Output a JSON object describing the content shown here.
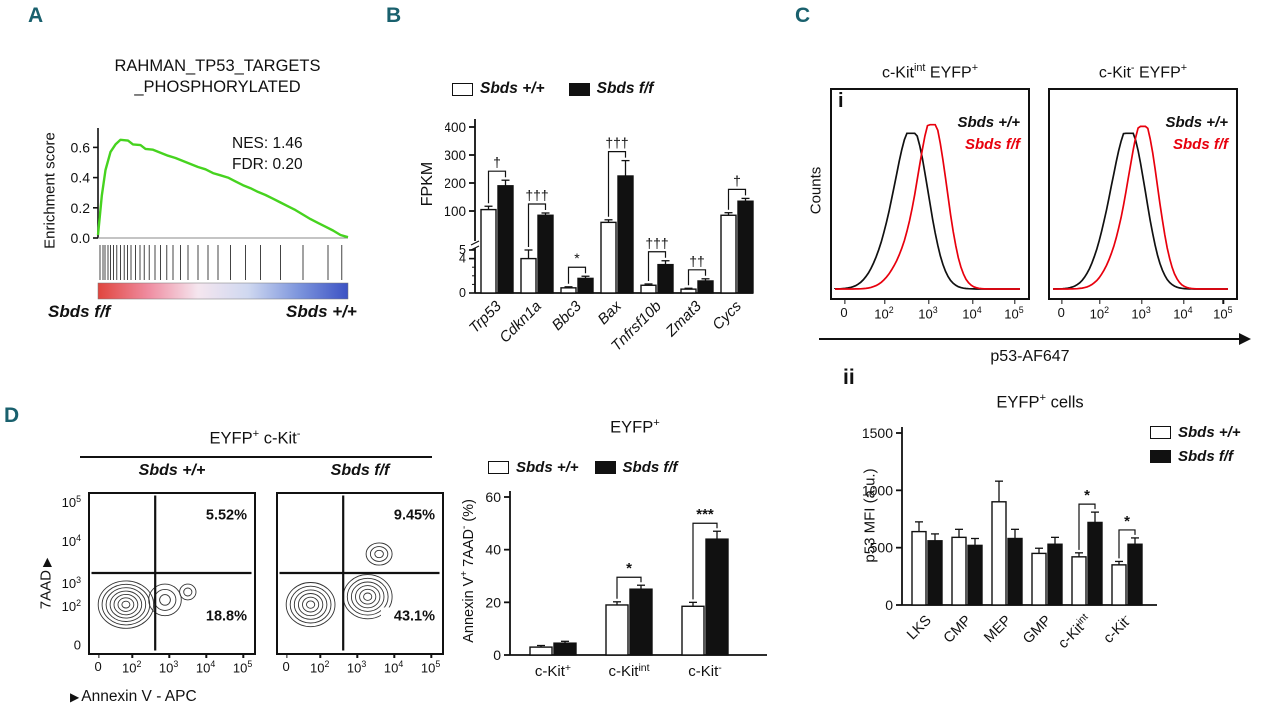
{
  "figure": {
    "panel_labels": {
      "a": "A",
      "b": "B",
      "c": "C",
      "d": "D",
      "c_sub_i": "i",
      "c_sub_ii": "ii"
    },
    "label_color": "#19606d"
  },
  "legend": {
    "wt_label": "Sbds +/+",
    "ff_label": "Sbds f/f",
    "wt_fill": "#ffffff",
    "ff_fill": "#111111",
    "ff_red": "#e8000d"
  },
  "chart_data": [
    {
      "id": "gsea",
      "type": "line",
      "panel": "A",
      "title_lines": [
        "RAHMAN_TP53_TARGETS",
        "_PHOSPHORYLATED"
      ],
      "ylabel": "Enrichment score",
      "yticks": [
        "0.6",
        "0.4",
        "0.2",
        "0.0"
      ],
      "ytick_values": [
        0.6,
        0.4,
        0.2,
        0.0
      ],
      "stats": [
        "NES: 1.46",
        "FDR: 0.20"
      ],
      "x_left_label": "Sbds f/f",
      "x_right_label": "Sbds +/+",
      "curve_color": "#46d31f",
      "curve_points": [
        [
          0,
          0.02
        ],
        [
          0.015,
          0.28
        ],
        [
          0.03,
          0.45
        ],
        [
          0.05,
          0.57
        ],
        [
          0.07,
          0.62
        ],
        [
          0.09,
          0.65
        ],
        [
          0.12,
          0.645
        ],
        [
          0.14,
          0.62
        ],
        [
          0.17,
          0.615
        ],
        [
          0.19,
          0.59
        ],
        [
          0.22,
          0.585
        ],
        [
          0.25,
          0.565
        ],
        [
          0.28,
          0.545
        ],
        [
          0.31,
          0.53
        ],
        [
          0.34,
          0.51
        ],
        [
          0.37,
          0.49
        ],
        [
          0.4,
          0.47
        ],
        [
          0.43,
          0.455
        ],
        [
          0.46,
          0.43
        ],
        [
          0.49,
          0.415
        ],
        [
          0.52,
          0.4
        ],
        [
          0.55,
          0.375
        ],
        [
          0.58,
          0.35
        ],
        [
          0.61,
          0.33
        ],
        [
          0.64,
          0.305
        ],
        [
          0.67,
          0.285
        ],
        [
          0.7,
          0.26
        ],
        [
          0.73,
          0.235
        ],
        [
          0.76,
          0.21
        ],
        [
          0.79,
          0.185
        ],
        [
          0.82,
          0.155
        ],
        [
          0.85,
          0.125
        ],
        [
          0.88,
          0.1
        ],
        [
          0.91,
          0.075
        ],
        [
          0.94,
          0.05
        ],
        [
          0.97,
          0.02
        ],
        [
          1,
          0.005
        ]
      ],
      "hit_positions": [
        0.008,
        0.02,
        0.028,
        0.04,
        0.05,
        0.062,
        0.075,
        0.09,
        0.105,
        0.118,
        0.132,
        0.15,
        0.168,
        0.185,
        0.205,
        0.228,
        0.25,
        0.275,
        0.3,
        0.33,
        0.36,
        0.4,
        0.44,
        0.48,
        0.53,
        0.59,
        0.65,
        0.73,
        0.82,
        0.92,
        0.975
      ],
      "gradient_stops": [
        "#e0453e",
        "#ef8ca0",
        "#f5e6ef",
        "#cfd8f0",
        "#7e96dd",
        "#3c52c4"
      ]
    },
    {
      "id": "fpkm",
      "type": "bar",
      "panel": "B",
      "ylabel": "FPKM",
      "upper_ticks": [
        400,
        300,
        200,
        100
      ],
      "break_label": "5",
      "lower_ticks": [
        4,
        0
      ],
      "categories": [
        "Trp53",
        "Cdkn1a",
        "Bbc3",
        "Bax",
        "Tnfrsf10b",
        "Zmat3",
        "Cycs"
      ],
      "series": [
        {
          "name": "Sbds +/+",
          "fill": "#ffffff",
          "values": [
            105,
            4,
            0.6,
            60,
            0.9,
            0.45,
            85
          ],
          "errors": [
            12,
            1,
            0.12,
            9,
            0.15,
            0.1,
            9
          ]
        },
        {
          "name": "Sbds f/f",
          "fill": "#111111",
          "values": [
            190,
            85,
            1.7,
            225,
            3.3,
            1.4,
            135
          ],
          "errors": [
            20,
            8,
            0.25,
            55,
            0.45,
            0.25,
            10
          ]
        }
      ],
      "significance": [
        "†",
        "†††",
        "*",
        "†††",
        "†††",
        "††",
        "†"
      ]
    },
    {
      "id": "hist_kit_int",
      "type": "line",
      "panel": "C-i",
      "title": "c-Kit^{int} EYFP^{+}",
      "curves": [
        {
          "name": "Sbds +/+",
          "color": "#111111",
          "peak": 0.42,
          "sigma": 0.085,
          "height": 0.9
        },
        {
          "name": "Sbds f/f",
          "color": "#e8000d",
          "peak": 0.53,
          "sigma": 0.075,
          "height": 0.95
        }
      ],
      "xticks": [
        "0",
        "10^{2}",
        "10^{3}",
        "10^{4}",
        "10^{5}"
      ]
    },
    {
      "id": "hist_kit_neg",
      "type": "line",
      "panel": "C-i",
      "title": "c-Kit^{-} EYFP^{+}",
      "curves": [
        {
          "name": "Sbds +/+",
          "color": "#111111",
          "peak": 0.44,
          "sigma": 0.09,
          "height": 0.9
        },
        {
          "name": "Sbds f/f",
          "color": "#e8000d",
          "peak": 0.52,
          "sigma": 0.08,
          "height": 0.94
        }
      ],
      "xticks": [
        "0",
        "10^{2}",
        "10^{3}",
        "10^{4}",
        "10^{5}"
      ]
    },
    {
      "id": "p53_mfi",
      "type": "bar",
      "panel": "C-ii",
      "title": "EYFP^{+} cells",
      "ylabel": "p53 MFI (a.u.)",
      "yticks": [
        1500,
        1000,
        500,
        0
      ],
      "ymax": 1500,
      "categories": [
        "LKS",
        "CMP",
        "MEP",
        "GMP",
        "c-Kit^{int}",
        "c-Kit^{-}"
      ],
      "series": [
        {
          "name": "Sbds +/+",
          "fill": "#ffffff",
          "values": [
            640,
            590,
            900,
            450,
            420,
            350
          ],
          "errors": [
            85,
            70,
            180,
            45,
            35,
            30
          ]
        },
        {
          "name": "Sbds f/f",
          "fill": "#111111",
          "values": [
            560,
            520,
            580,
            530,
            720,
            530
          ],
          "errors": [
            60,
            60,
            80,
            60,
            90,
            55
          ]
        }
      ],
      "significance": [
        "",
        "",
        "",
        "",
        "*",
        "*"
      ]
    },
    {
      "id": "flow_wt",
      "type": "scatter",
      "panel": "D",
      "subtitle": "Sbds +/+",
      "upper_right_pct": "5.52%",
      "lower_right_pct": "18.8%",
      "blobs": [
        {
          "cx": 0.22,
          "cy": 0.3,
          "rx": 0.17,
          "ry": 0.15,
          "rings": 7
        },
        {
          "cx": 0.46,
          "cy": 0.33,
          "rx": 0.1,
          "ry": 0.1,
          "rings": 3
        },
        {
          "cx": 0.6,
          "cy": 0.38,
          "rx": 0.05,
          "ry": 0.05,
          "rings": 2
        }
      ]
    },
    {
      "id": "flow_ff",
      "type": "scatter",
      "panel": "D",
      "subtitle": "Sbds f/f",
      "upper_right_pct": "9.45%",
      "lower_right_pct": "43.1%",
      "blobs": [
        {
          "cx": 0.2,
          "cy": 0.3,
          "rx": 0.15,
          "ry": 0.14,
          "rings": 6
        },
        {
          "cx": 0.55,
          "cy": 0.35,
          "rx": 0.15,
          "ry": 0.14,
          "rings": 6
        },
        {
          "cx": 0.62,
          "cy": 0.62,
          "rx": 0.08,
          "ry": 0.07,
          "rings": 3
        }
      ]
    },
    {
      "id": "annexin_pct",
      "type": "bar",
      "panel": "D",
      "title": "EYFP^{+}",
      "ylabel": "Annexin V^{+} 7AAD^{-} (%)",
      "yticks": [
        60,
        40,
        20,
        0
      ],
      "ymax": 60,
      "categories": [
        "c-Kit^{+}",
        "c-Kit^{int}",
        "c-Kit^{-}"
      ],
      "series": [
        {
          "name": "Sbds +/+",
          "fill": "#ffffff",
          "values": [
            3,
            19,
            18.5
          ],
          "errors": [
            0.6,
            1.2,
            1.5
          ]
        },
        {
          "name": "Sbds f/f",
          "fill": "#111111",
          "values": [
            4.5,
            25,
            44
          ],
          "errors": [
            0.7,
            1.5,
            3
          ]
        }
      ],
      "significance": [
        "",
        "*",
        "***"
      ]
    }
  ],
  "panelC": {
    "x_axis_label": "p53-AF647",
    "counts_label": "Counts"
  },
  "panelD": {
    "header": "EYFP^{+} c-Kit^{-}",
    "y_axis_label": "7AAD",
    "x_axis_label": "Annexin V - APC",
    "xticks": [
      "0",
      "10^{2}",
      "10^{3}",
      "10^{4}",
      "10^{5}"
    ],
    "yticks": [
      "0",
      "10^{2}",
      "10^{3}",
      "10^{4}",
      "10^{5}"
    ],
    "arrow_glyph": "▶"
  }
}
